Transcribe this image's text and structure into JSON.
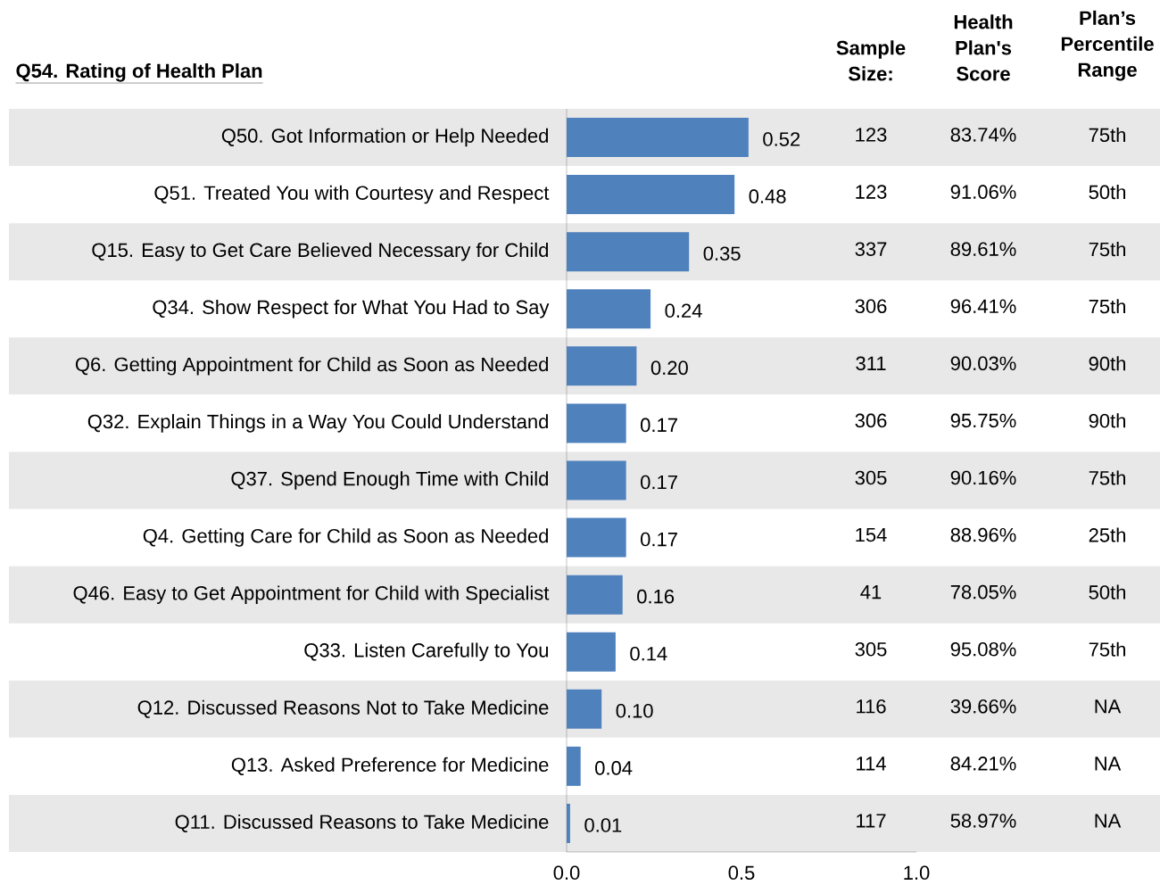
{
  "chart_data": {
    "type": "bar",
    "orientation": "horizontal",
    "title": "Q54. Rating of Health Plan",
    "categories": [
      "Q50.  Got Information or Help Needed",
      "Q51.  Treated You with Courtesy and Respect",
      "Q15.  Easy to Get Care Believed Necessary for Child",
      "Q34.  Show Respect for What You Had to Say",
      "Q6.  Getting Appointment for Child as Soon as Needed",
      "Q32.  Explain Things in a Way You Could Understand",
      "Q37.  Spend Enough Time with Child",
      "Q4.  Getting Care for Child as Soon as Needed",
      "Q46.  Easy to Get Appointment for Child with Specialist",
      "Q33.  Listen Carefully to You",
      "Q12.  Discussed Reasons Not to Take Medicine",
      "Q13.  Asked Preference for Medicine",
      "Q11.  Discussed Reasons to Take Medicine"
    ],
    "values": [
      0.52,
      0.48,
      0.35,
      0.24,
      0.2,
      0.17,
      0.17,
      0.17,
      0.16,
      0.14,
      0.1,
      0.04,
      0.01
    ],
    "value_labels": [
      "0.52",
      "0.48",
      "0.35",
      "0.24",
      "0.20",
      "0.17",
      "0.17",
      "0.17",
      "0.16",
      "0.14",
      "0.10",
      "0.04",
      "0.01"
    ],
    "color": "#4f81bd",
    "xlim": [
      0,
      1
    ],
    "xticks": [
      {
        "value": 0,
        "label": "0.0"
      },
      {
        "value": 0.5,
        "label": "0.5"
      },
      {
        "value": 1,
        "label": "1.0"
      }
    ],
    "annotations": [
      "Sample Size:",
      "Health Plan's Score",
      "Plan’s Percentile Range",
      "123",
      "83.74%",
      "75th",
      "123",
      "91.06%",
      "50th",
      "337",
      "89.61%",
      "75th",
      "306",
      "96.41%",
      "75th",
      "311",
      "90.03%",
      "90th",
      "306",
      "95.75%",
      "90th",
      "305",
      "90.16%",
      "75th",
      "154",
      "88.96%",
      "25th",
      "41",
      "78.05%",
      "50th",
      "305",
      "95.08%",
      "75th",
      "116",
      "39.66%",
      "NA",
      "114",
      "84.21%",
      "NA",
      "117",
      "58.97%",
      "NA"
    ]
  }
}
